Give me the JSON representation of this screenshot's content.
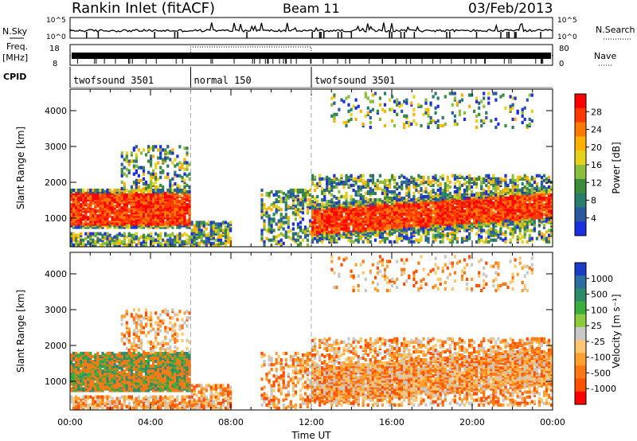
{
  "header": {
    "station": "Rankin Inlet (fitACF)",
    "beam": "Beam 11",
    "date": "03/Feb/2013"
  },
  "top_panels": {
    "nsky_label": "N.Sky",
    "nsearch_label": "N.Search",
    "freq_label_1": "Freq.",
    "freq_label_2": "[MHz]",
    "nave_label": "Nave",
    "cpid_label": "CPID",
    "nsky_ticks": [
      "10^5",
      "10^0"
    ],
    "nsearch_ticks": [
      "10^5",
      "10^0"
    ],
    "freq_ticks": [
      "18",
      "8"
    ],
    "nave_ticks": [
      "80",
      "0"
    ],
    "cpid_segments": [
      {
        "label": "twofsound 3501",
        "start_hr": 0,
        "end_hr": 6
      },
      {
        "label": "normal 150",
        "start_hr": 6,
        "end_hr": 12
      },
      {
        "label": "twofsound 3501",
        "start_hr": 12,
        "end_hr": 24
      }
    ]
  },
  "power_colorbar": {
    "title": "Power [dB]",
    "ticks": [
      "28",
      "24",
      "20",
      "16",
      "12",
      "8",
      "4"
    ],
    "colors": [
      "#ff0000",
      "#ff3a00",
      "#ff7a00",
      "#ffb000",
      "#e6d21a",
      "#8bbe3c",
      "#3c8c3c",
      "#2a7d6a",
      "#2b5aa0",
      "#1c2fe0"
    ]
  },
  "velocity_colorbar": {
    "title": "Velocity [m s⁻¹]",
    "ticks": [
      "1000",
      "500",
      "100",
      "25",
      "-25",
      "-100",
      "-500",
      "-1000"
    ],
    "colors": [
      "#1c3cc8",
      "#2a6fa0",
      "#2f8a6a",
      "#3cae3c",
      "#8ccc3c",
      "#c8c8c8",
      "#ffc870",
      "#ffa030",
      "#ff7814",
      "#ff5000",
      "#ff0000"
    ]
  },
  "chart_data": [
    {
      "type": "heatmap",
      "name": "power",
      "ylabel": "Slant Range [km]",
      "xlabel": "",
      "yticks": [
        1000,
        2000,
        3000,
        4000
      ],
      "ylim": [
        200,
        4600
      ],
      "xlim": [
        0,
        24
      ],
      "xticks": [
        "00:00",
        "04:00",
        "08:00",
        "12:00",
        "16:00",
        "20:00",
        "00:00"
      ],
      "grid": false,
      "cpid_boundaries_hr": [
        6,
        12
      ]
    },
    {
      "type": "heatmap",
      "name": "velocity",
      "ylabel": "Slant Range [km]",
      "xlabel": "Time UT",
      "yticks": [
        1000,
        2000,
        3000,
        4000
      ],
      "ylim": [
        200,
        4600
      ],
      "xlim": [
        0,
        24
      ],
      "xticks": [
        "00:00",
        "04:00",
        "08:00",
        "12:00",
        "16:00",
        "20:00",
        "00:00"
      ],
      "grid": false,
      "cpid_boundaries_hr": [
        6,
        12
      ]
    }
  ]
}
